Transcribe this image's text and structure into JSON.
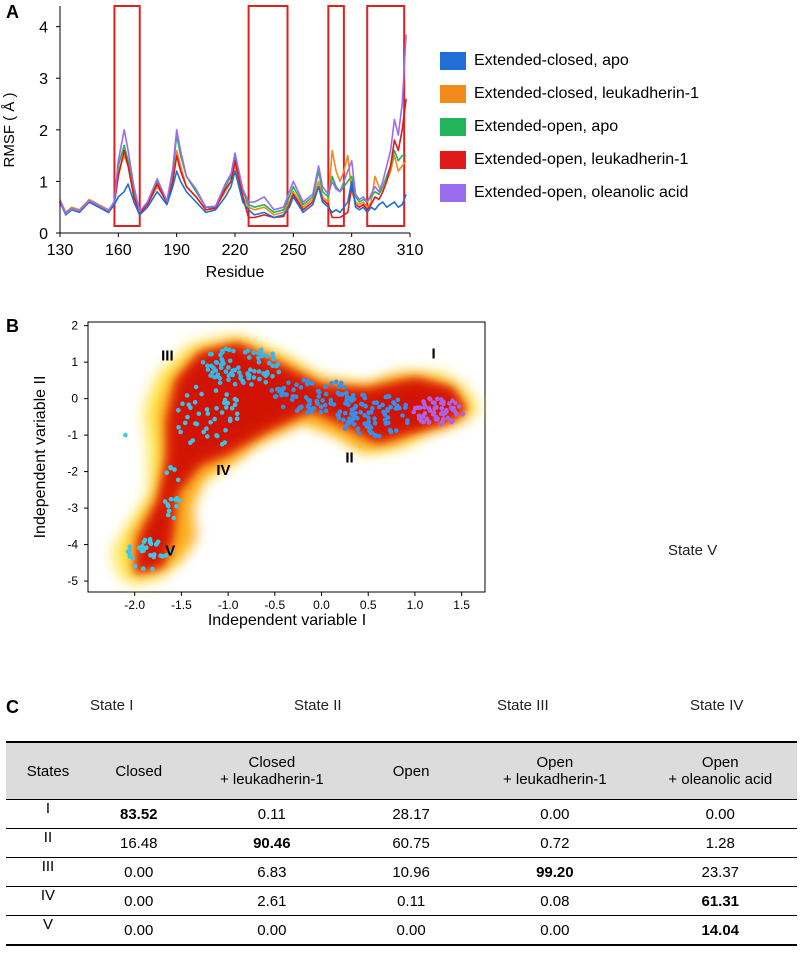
{
  "panels": {
    "a": "A",
    "b": "B",
    "c": "C"
  },
  "colors": {
    "closed_apo": "#1f6fd6",
    "closed_leuk": "#f28a1c",
    "open_apo": "#22b45a",
    "open_leuk": "#e01a1a",
    "open_olean": "#9a6cf0",
    "highlight_box": "#e02020"
  },
  "chart_data": [
    {
      "type": "line",
      "title": "",
      "xlabel": "Residue",
      "ylabel": "RMSF ( Å )",
      "xlim": [
        130,
        310
      ],
      "ylim": [
        0,
        4.4
      ],
      "xticks": [
        "130",
        "160",
        "190",
        "220",
        "250",
        "280",
        "310"
      ],
      "yticks": [
        "0",
        "1",
        "2",
        "3",
        "4"
      ],
      "highlighted_regions": [
        [
          158,
          171
        ],
        [
          227,
          247
        ],
        [
          268,
          276
        ],
        [
          288,
          307
        ]
      ],
      "series": [
        {
          "name": "Extended-closed, apo",
          "x": [
            130,
            133,
            136,
            140,
            145,
            150,
            155,
            158,
            160,
            163,
            165,
            168,
            171,
            175,
            180,
            185,
            188,
            190,
            192,
            195,
            200,
            205,
            210,
            215,
            218,
            220,
            224,
            227,
            230,
            235,
            240,
            245,
            248,
            250,
            255,
            260,
            263,
            265,
            268,
            270,
            272,
            274,
            276,
            278,
            280,
            282,
            284,
            286,
            288,
            290,
            292,
            294,
            296,
            298,
            300,
            302,
            304,
            306,
            308
          ],
          "y": [
            0.6,
            0.35,
            0.45,
            0.4,
            0.6,
            0.5,
            0.4,
            0.55,
            0.7,
            0.8,
            0.95,
            0.6,
            0.35,
            0.5,
            0.8,
            0.55,
            0.9,
            1.2,
            1.0,
            0.8,
            0.6,
            0.4,
            0.45,
            0.7,
            0.9,
            1.2,
            0.6,
            0.45,
            0.35,
            0.4,
            0.3,
            0.35,
            0.5,
            0.7,
            0.4,
            0.55,
            0.9,
            0.6,
            0.5,
            0.4,
            0.45,
            0.4,
            0.5,
            0.6,
            1.0,
            0.5,
            0.45,
            0.5,
            0.4,
            0.5,
            0.45,
            0.55,
            0.6,
            0.5,
            0.55,
            0.6,
            0.5,
            0.55,
            0.75
          ]
        },
        {
          "name": "Extended-closed, leukadherin-1",
          "x": [
            130,
            133,
            136,
            140,
            145,
            150,
            155,
            158,
            160,
            163,
            165,
            168,
            171,
            175,
            180,
            185,
            188,
            190,
            192,
            195,
            200,
            205,
            210,
            215,
            218,
            220,
            224,
            227,
            230,
            235,
            240,
            245,
            248,
            250,
            255,
            260,
            263,
            265,
            268,
            270,
            272,
            274,
            276,
            278,
            280,
            282,
            284,
            286,
            288,
            290,
            292,
            294,
            296,
            298,
            300,
            302,
            304,
            306,
            308
          ],
          "y": [
            0.65,
            0.4,
            0.5,
            0.45,
            0.65,
            0.55,
            0.45,
            0.6,
            1.2,
            1.5,
            1.3,
            0.7,
            0.4,
            0.55,
            0.9,
            0.6,
            1.1,
            1.6,
            1.3,
            0.9,
            0.7,
            0.45,
            0.5,
            0.8,
            1.0,
            1.3,
            0.7,
            0.5,
            0.45,
            0.5,
            0.35,
            0.4,
            0.6,
            0.8,
            0.5,
            0.65,
            1.0,
            0.7,
            0.6,
            1.6,
            1.2,
            1.0,
            1.2,
            1.5,
            0.8,
            0.6,
            0.55,
            0.6,
            0.5,
            0.6,
            1.1,
            0.9,
            0.8,
            1.0,
            1.2,
            1.5,
            1.2,
            1.3,
            1.4
          ]
        },
        {
          "name": "Extended-open, apo",
          "x": [
            130,
            133,
            136,
            140,
            145,
            150,
            155,
            158,
            160,
            163,
            165,
            168,
            171,
            175,
            180,
            185,
            188,
            190,
            192,
            195,
            200,
            205,
            210,
            215,
            218,
            220,
            224,
            227,
            230,
            235,
            240,
            245,
            248,
            250,
            255,
            260,
            263,
            265,
            268,
            270,
            272,
            274,
            276,
            278,
            280,
            282,
            284,
            286,
            288,
            290,
            292,
            294,
            296,
            298,
            300,
            302,
            304,
            306,
            308
          ],
          "y": [
            0.6,
            0.38,
            0.48,
            0.42,
            0.62,
            0.52,
            0.42,
            0.6,
            1.3,
            1.7,
            1.4,
            0.8,
            0.4,
            0.6,
            1.0,
            0.6,
            1.2,
            1.9,
            1.5,
            1.1,
            0.8,
            0.5,
            0.5,
            0.9,
            1.1,
            1.5,
            0.8,
            0.55,
            0.5,
            0.55,
            0.4,
            0.45,
            0.7,
            0.9,
            0.55,
            0.7,
            1.2,
            0.8,
            0.7,
            1.1,
            0.9,
            0.8,
            0.9,
            1.0,
            1.1,
            0.7,
            0.6,
            0.65,
            0.6,
            0.7,
            0.8,
            0.75,
            0.9,
            1.1,
            1.3,
            1.6,
            1.4,
            1.5,
            1.5
          ]
        },
        {
          "name": "Extended-open, leukadherin-1",
          "x": [
            130,
            133,
            136,
            140,
            145,
            150,
            155,
            158,
            160,
            163,
            165,
            168,
            171,
            175,
            180,
            185,
            188,
            190,
            192,
            195,
            200,
            205,
            210,
            215,
            218,
            220,
            224,
            227,
            230,
            235,
            240,
            245,
            248,
            250,
            255,
            260,
            263,
            265,
            268,
            270,
            272,
            274,
            276,
            278,
            280,
            282,
            284,
            286,
            288,
            290,
            292,
            294,
            296,
            298,
            300,
            302,
            304,
            306,
            308
          ],
          "y": [
            0.6,
            0.36,
            0.46,
            0.41,
            0.6,
            0.5,
            0.4,
            0.58,
            1.1,
            1.6,
            1.3,
            0.7,
            0.38,
            0.55,
            0.95,
            0.58,
            1.0,
            1.5,
            1.2,
            0.9,
            0.7,
            0.45,
            0.48,
            0.85,
            1.0,
            1.4,
            0.7,
            0.3,
            0.3,
            0.35,
            0.3,
            0.32,
            0.55,
            0.75,
            0.45,
            0.6,
            0.9,
            0.65,
            0.55,
            0.3,
            0.3,
            0.3,
            0.35,
            0.4,
            0.9,
            0.55,
            0.5,
            0.55,
            0.45,
            0.55,
            0.7,
            0.65,
            0.8,
            1.0,
            1.3,
            1.8,
            1.6,
            2.0,
            2.6
          ]
        },
        {
          "name": "Extended-open, oleanolic acid",
          "x": [
            130,
            133,
            136,
            140,
            145,
            150,
            155,
            158,
            160,
            163,
            165,
            168,
            171,
            175,
            180,
            185,
            188,
            190,
            192,
            195,
            200,
            205,
            210,
            215,
            218,
            220,
            224,
            227,
            230,
            235,
            240,
            245,
            248,
            250,
            255,
            260,
            263,
            265,
            268,
            270,
            272,
            274,
            276,
            278,
            280,
            282,
            284,
            286,
            288,
            290,
            292,
            294,
            296,
            298,
            300,
            302,
            304,
            306,
            308
          ],
          "y": [
            0.62,
            0.37,
            0.47,
            0.43,
            0.63,
            0.53,
            0.43,
            0.62,
            1.4,
            2.0,
            1.6,
            0.9,
            0.42,
            0.6,
            1.05,
            0.62,
            1.25,
            2.0,
            1.6,
            1.1,
            0.85,
            0.5,
            0.52,
            0.95,
            1.15,
            1.55,
            0.85,
            0.6,
            0.6,
            0.7,
            0.45,
            0.5,
            0.8,
            1.0,
            0.6,
            0.75,
            1.3,
            0.9,
            0.75,
            1.0,
            0.85,
            0.8,
            1.0,
            1.2,
            1.4,
            0.75,
            0.65,
            0.7,
            0.6,
            0.75,
            0.9,
            0.8,
            1.0,
            1.3,
            1.6,
            2.2,
            1.9,
            2.5,
            3.85
          ]
        }
      ]
    },
    {
      "type": "scatter",
      "title": "",
      "xlabel": "Independent variable I",
      "ylabel": "Independent variable II",
      "xlim": [
        -2.5,
        1.75
      ],
      "ylim": [
        -5.3,
        2.1
      ],
      "xticks": [
        "-2.0",
        "-1.5",
        "-1.0",
        "-0.5",
        "0.0",
        "0.5",
        "1.0",
        "1.5"
      ],
      "yticks": [
        "2",
        "1",
        "0",
        "-1",
        "-2",
        "-3",
        "-4",
        "-5"
      ],
      "state_labels": [
        {
          "label": "I",
          "x": 1.2,
          "y": 1.1
        },
        {
          "label": "II",
          "x": 0.3,
          "y": -1.75
        },
        {
          "label": "III",
          "x": -1.65,
          "y": 1.05
        },
        {
          "label": "IV",
          "x": -1.05,
          "y": -2.1
        },
        {
          "label": "V",
          "x": -1.62,
          "y": -4.3
        }
      ]
    }
  ],
  "side_label": "State V",
  "state_labels_row": [
    "State I",
    "State II",
    "State III",
    "State IV"
  ],
  "table": {
    "headers": [
      "States",
      "Closed",
      "Closed\n+ leukadherin-1",
      "Open",
      "Open\n+ leukadherin-1",
      "Open\n+ oleanolic acid"
    ],
    "rows": [
      [
        "I",
        "83.52",
        "0.11",
        "28.17",
        "0.00",
        "0.00"
      ],
      [
        "II",
        "16.48",
        "90.46",
        "60.75",
        "0.72",
        "1.28"
      ],
      [
        "III",
        "0.00",
        "6.83",
        "10.96",
        "99.20",
        "23.37"
      ],
      [
        "IV",
        "0.00",
        "2.61",
        "0.11",
        "0.08",
        "61.31"
      ],
      [
        "V",
        "0.00",
        "0.00",
        "0.00",
        "0.00",
        "14.04"
      ]
    ],
    "bold_cells": [
      [
        0,
        1
      ],
      [
        1,
        2
      ],
      [
        2,
        4
      ],
      [
        3,
        5
      ],
      [
        4,
        5
      ]
    ]
  }
}
